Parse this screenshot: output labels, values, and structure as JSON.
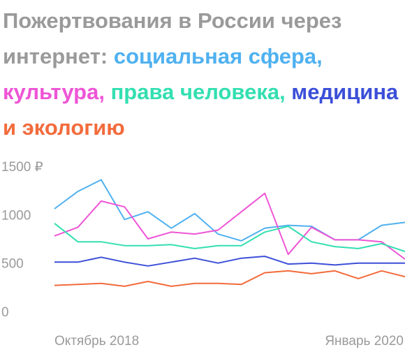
{
  "title_parts": [
    {
      "text": "Пожертвования в России через интернет: ",
      "color": "#9a9a9a"
    },
    {
      "text": "социальная сфера, ",
      "color": "#4fb1f0"
    },
    {
      "text": "культура, ",
      "color": "#ee55d6"
    },
    {
      "text": "права человека, ",
      "color": "#33dfb1"
    },
    {
      "text": "медицина ",
      "color": "#3c4fd8"
    },
    {
      "text": "и экологию",
      "color": "#f26b3c"
    }
  ],
  "chart_data": {
    "type": "line",
    "title": "Пожертвования в России через интернет: социальная сфера, культура, права человека, медицина и экологию",
    "xlabel": "",
    "ylabel": "",
    "x_tick_labels": [
      "Октябрь 2018",
      "Январь 2020"
    ],
    "y_tick_labels": [
      "1500 ₽",
      "1000",
      "500",
      "0"
    ],
    "y_ticks": [
      1500,
      1000,
      500,
      0
    ],
    "ylim": [
      0,
      1500
    ],
    "grid": false,
    "legend": "in-title",
    "series": [
      {
        "name": "социальная сфера",
        "color": "#4fb1f0",
        "values": [
          1060,
          1240,
          1360,
          950,
          1030,
          860,
          1010,
          800,
          730,
          860,
          890,
          880,
          740,
          740,
          890,
          920
        ]
      },
      {
        "name": "культура",
        "color": "#ee55d6",
        "values": [
          780,
          870,
          1140,
          1080,
          750,
          820,
          800,
          840,
          1030,
          1220,
          590,
          870,
          740,
          740,
          720,
          540
        ]
      },
      {
        "name": "права человека",
        "color": "#33dfb1",
        "values": [
          910,
          720,
          720,
          680,
          680,
          690,
          650,
          680,
          680,
          820,
          880,
          720,
          670,
          650,
          700,
          620
        ]
      },
      {
        "name": "медицина",
        "color": "#3c4fd8",
        "values": [
          510,
          510,
          560,
          510,
          470,
          510,
          550,
          500,
          550,
          570,
          490,
          500,
          480,
          500,
          500,
          500
        ]
      },
      {
        "name": "экологию",
        "color": "#f26b3c",
        "values": [
          270,
          280,
          290,
          260,
          310,
          260,
          290,
          290,
          280,
          400,
          420,
          390,
          420,
          340,
          420,
          360
        ]
      }
    ]
  }
}
